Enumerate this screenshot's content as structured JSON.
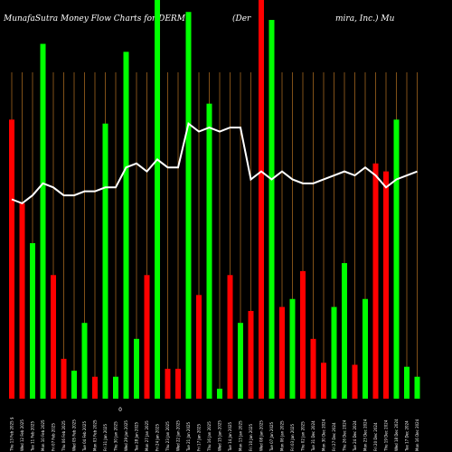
{
  "title": {
    "left": "MunafaSutra  Money Flow  Charts for DERM",
    "middle": "(Der",
    "right": "mira,  Inc.) Mu"
  },
  "chart_data": {
    "type": "bar",
    "series_note": "Money flow bars with an overlaid price line",
    "colors": {
      "up": "#00ff00",
      "down": "#ff0000",
      "line": "#ffffff",
      "grid": "#a0641e",
      "background": "#000000"
    },
    "axis_special_label": "0",
    "bars": [
      {
        "label": "Thu 13 Feb 2025 $",
        "value": 70,
        "color": "down"
      },
      {
        "label": "Wed 12 Feb 2025",
        "value": 49,
        "color": "down"
      },
      {
        "label": "Tue 11 Feb 2025",
        "value": 39,
        "color": "up"
      },
      {
        "label": "Mon 10 Feb 2025",
        "value": 89,
        "color": "up"
      },
      {
        "label": "Fri 07 Feb 2025",
        "value": 31,
        "color": "down"
      },
      {
        "label": "Thu 06 Feb 2025",
        "value": 10,
        "color": "down"
      },
      {
        "label": "Wed 05 Feb 2025",
        "value": 7,
        "color": "up"
      },
      {
        "label": "Tue 04 Feb 2025",
        "value": 19,
        "color": "up"
      },
      {
        "label": "Mon 03 Feb 2025",
        "value": 5.5,
        "color": "down"
      },
      {
        "label": "Fri 31 Jan 2025",
        "value": 69,
        "color": "up"
      },
      {
        "label": "Thu 30 Jan 2025",
        "value": 5.5,
        "color": "up"
      },
      {
        "label": "Wed 29 Jan 2025",
        "value": 87,
        "color": "up"
      },
      {
        "label": "Tue 28 Jan 2025",
        "value": 15,
        "color": "up"
      },
      {
        "label": "Mon 27 Jan 2025",
        "value": 31,
        "color": "down"
      },
      {
        "label": "Fri 24 Jan 2025",
        "value": 100,
        "color": "up"
      },
      {
        "label": "Thu 23 Jan 2025",
        "value": 7.5,
        "color": "down"
      },
      {
        "label": "Wed 22 Jan 2025",
        "value": 7.5,
        "color": "down"
      },
      {
        "label": "Tue 21 Jan 2025",
        "value": 97,
        "color": "up"
      },
      {
        "label": "Fri 17 Jan 2025",
        "value": 26,
        "color": "down"
      },
      {
        "label": "Thu 16 Jan 2025",
        "value": 74,
        "color": "up"
      },
      {
        "label": "Wed 15 Jan 2025",
        "value": 2.5,
        "color": "up"
      },
      {
        "label": "Tue 14 Jan 2025",
        "value": 31,
        "color": "down"
      },
      {
        "label": "Mon 13 Jan 2025",
        "value": 19,
        "color": "up"
      },
      {
        "label": "Fri 10 Jan 2025",
        "value": 22,
        "color": "down"
      },
      {
        "label": "Wed 08 Jan 2025",
        "value": 100,
        "color": "down"
      },
      {
        "label": "Tue 07 Jan 2025",
        "value": 95,
        "color": "up"
      },
      {
        "label": "Mon 06 Jan 2025",
        "value": 23,
        "color": "down"
      },
      {
        "label": "Fri 03 Jan 2025",
        "value": 25,
        "color": "up"
      },
      {
        "label": "Thu 02 Jan 2025",
        "value": 32,
        "color": "down"
      },
      {
        "label": "Tue 31 Dec 2024",
        "value": 15,
        "color": "down"
      },
      {
        "label": "Mon 30 Dec 2024",
        "value": 9,
        "color": "down"
      },
      {
        "label": "Fri 27 Dec 2024",
        "value": 23,
        "color": "up"
      },
      {
        "label": "Thu 26 Dec 2024",
        "value": 34,
        "color": "up"
      },
      {
        "label": "Tue 24 Dec 2024",
        "value": 8.5,
        "color": "down"
      },
      {
        "label": "Mon 23 Dec 2024",
        "value": 25,
        "color": "up"
      },
      {
        "label": "Fri 20 Dec 2024",
        "value": 59,
        "color": "down"
      },
      {
        "label": "Thu 19 Dec 2024",
        "value": 57,
        "color": "down"
      },
      {
        "label": "Wed 18 Dec 2024",
        "value": 70,
        "color": "up"
      },
      {
        "label": "Tue 17 Dec 2024",
        "value": 8,
        "color": "up"
      },
      {
        "label": "Mon 16 Dec 2024",
        "value": 5.5,
        "color": "up"
      }
    ],
    "price_line": [
      50,
      49,
      51,
      54,
      53,
      51,
      51,
      52,
      52,
      53,
      53,
      58,
      59,
      57,
      60,
      58,
      58,
      69,
      67,
      68,
      67,
      68,
      68,
      55,
      57,
      55,
      57,
      55,
      54,
      54,
      55,
      56,
      57,
      56,
      58,
      56,
      53,
      55,
      56,
      57
    ]
  }
}
